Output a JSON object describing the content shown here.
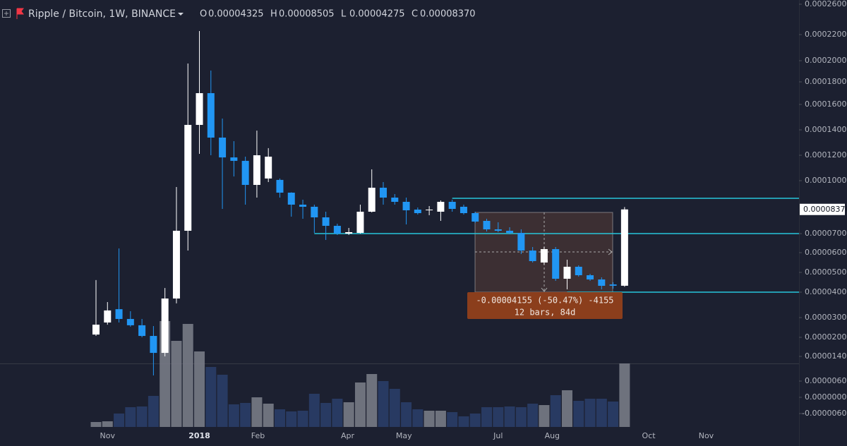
{
  "chart_data": {
    "type": "candlestick",
    "title": "Ripple / Bitcoin, 1W, BINANCE",
    "legend": [
      {
        "key": "O",
        "label": "0.00004325"
      },
      {
        "key": "H",
        "label": "0.00008505"
      },
      {
        "key": "L",
        "label": "0.00004275"
      },
      {
        "key": "C",
        "label": "0.00008370"
      }
    ],
    "categories": [
      null,
      null,
      null,
      null,
      null,
      null,
      null,
      null,
      null,
      null,
      null,
      null,
      null,
      null,
      null,
      null,
      null,
      null,
      null,
      null,
      null,
      null,
      null,
      null,
      null,
      null,
      null,
      null,
      null,
      null,
      null,
      null,
      null,
      null,
      null,
      null,
      null,
      null,
      null,
      null,
      null,
      null,
      null,
      null,
      null,
      null,
      null
    ],
    "open": [
      2.14e-05,
      2.75e-05,
      3.33e-05,
      2.93e-05,
      2.61e-05,
      2.07e-05,
      1.51e-05,
      3.75e-05,
      7.16e-05,
      0.0001439,
      0.00017,
      0.0001339,
      0.0001183,
      0.0001156,
      9.76e-05,
      0.0001017,
      0.0001006,
      9.32e-05,
      8.64e-05,
      8.52e-05,
      7.92e-05,
      7.44e-05,
      7e-05,
      7.04e-05,
      8.24e-05,
      9.6e-05,
      9.04e-05,
      8.8e-05,
      8.36e-05,
      8.32e-05,
      8.24e-05,
      8.8e-05,
      8.52e-05,
      8.16e-05,
      7.72e-05,
      7.24e-05,
      7.16e-05,
      7.04e-05,
      6.11e-05,
      5.5e-05,
      6.185e-05,
      4.679e-05,
      5.286e-05,
      4.857e-05,
      4.643e-05,
      4.39e-05,
      4.325e-05
    ],
    "high": [
      4.61e-05,
      3.61e-05,
      6.22e-05,
      3.25e-05,
      2.93e-05,
      2.57e-05,
      4.21e-05,
      9.64e-05,
      0.0001973,
      0.0002247,
      0.0001907,
      0.0001489,
      0.0001311,
      0.0001189,
      0.0001394,
      0.0001256,
      0.0001017,
      9.34e-05,
      8.92e-05,
      8.64e-05,
      8.24e-05,
      7.56e-05,
      7.32e-05,
      8.64e-05,
      0.0001089,
      9.92e-05,
      9.24e-05,
      9.04e-05,
      8.48e-05,
      8.56e-05,
      8.88e-05,
      8.92e-05,
      8.64e-05,
      8.24e-05,
      7.84e-05,
      7.64e-05,
      7.36e-05,
      7.24e-05,
      6.296e-05,
      6.296e-05,
      6.296e-05,
      5.643e-05,
      5.357e-05,
      4.929e-05,
      4.75e-05,
      4.5e-05,
      8.505e-05
    ],
    "low": [
      2.07e-05,
      2.64e-05,
      2.75e-05,
      2.54e-05,
      2e-05,
      8e-06,
      1.4e-05,
      3.56e-05,
      6.11e-05,
      0.0001211,
      0.00012,
      8.4e-05,
      0.0001033,
      8.64e-05,
      9.04e-05,
      9.92e-05,
      9.04e-05,
      7.96e-05,
      7.84e-05,
      7.04e-05,
      6.667e-05,
      6.926e-05,
      6.93e-05,
      7e-05,
      8.2e-05,
      8.64e-05,
      8.64e-05,
      7.52e-05,
      8.08e-05,
      8.04e-05,
      7.72e-05,
      8.24e-05,
      8.08e-05,
      7.6e-05,
      7.12e-05,
      7.08e-05,
      6.963e-05,
      5.929e-05,
      5.5e-05,
      5.393e-05,
      4.571e-05,
      4.143e-05,
      4.786e-05,
      4.571e-05,
      4.143e-05,
      4.18e-05,
      4.275e-05
    ],
    "close": [
      2.64e-05,
      3.28e-05,
      2.93e-05,
      2.61e-05,
      2.07e-05,
      1.51e-05,
      3.75e-05,
      7.16e-05,
      0.0001439,
      0.00017,
      0.0001339,
      0.0001183,
      0.0001156,
      9.76e-05,
      0.00012,
      0.0001189,
      9.32e-05,
      8.64e-05,
      8.52e-05,
      7.92e-05,
      7.44e-05,
      7e-05,
      7.08e-05,
      8.24e-05,
      9.6e-05,
      9.04e-05,
      8.8e-05,
      8.32e-05,
      8.16e-05,
      8.36e-05,
      8.8e-05,
      8.4e-05,
      8.16e-05,
      7.68e-05,
      7.24e-05,
      7.16e-05,
      7.04e-05,
      6.11e-05,
      5.571e-05,
      6.185e-05,
      4.679e-05,
      5.286e-05,
      4.857e-05,
      4.643e-05,
      4.321e-05,
      4.325e-05,
      8.37e-05
    ],
    "volume": [
      7,
      8,
      19,
      28,
      29,
      44,
      150,
      122,
      146,
      107,
      85,
      74,
      32,
      34,
      42,
      33,
      25,
      22,
      23,
      47,
      34,
      40,
      35,
      63,
      75,
      65,
      54,
      35,
      25,
      23,
      23,
      21,
      15,
      19,
      28,
      28,
      29,
      28,
      33,
      31,
      45,
      52,
      37,
      40,
      40,
      36,
      90
    ],
    "up_color": "#ffffff",
    "down_color": "#2196f3",
    "volume_up_color": "#787b86",
    "volume_down_color": "#2a3d68",
    "yticks": [
      {
        "value": 0.00026,
        "label": "0.00026000"
      },
      {
        "value": 0.00022,
        "label": "0.00022000"
      },
      {
        "value": 0.0002,
        "label": "0.00020000"
      },
      {
        "value": 0.00018,
        "label": "0.00018000"
      },
      {
        "value": 0.00016,
        "label": "0.00016000"
      },
      {
        "value": 0.00014,
        "label": "0.00014000"
      },
      {
        "value": 0.00012,
        "label": "0.00012000"
      },
      {
        "value": 0.0001,
        "label": "0.00010000"
      },
      {
        "value": 7e-05,
        "label": "0.00007000"
      },
      {
        "value": 6e-05,
        "label": "0.00006000"
      },
      {
        "value": 5e-05,
        "label": "0.00005000"
      },
      {
        "value": 4e-05,
        "label": "0.00004000"
      },
      {
        "value": 3e-05,
        "label": "0.00003000"
      },
      {
        "value": 2e-05,
        "label": "0.00002000"
      },
      {
        "value": 1.4e-05,
        "label": "0.00001400"
      }
    ],
    "volume_ticks": [
      {
        "value": 6e-06,
        "label": "0.00000600"
      },
      {
        "value": 0,
        "label": "0.00000000"
      },
      {
        "value": -6e-06,
        "label": "-0.00000600"
      }
    ],
    "xticks": [
      {
        "value": 1.0,
        "label": "Nov"
      },
      {
        "value": 9.0,
        "label": "2018"
      },
      {
        "value": 14.1,
        "label": "Feb"
      },
      {
        "value": 21.9,
        "label": "Apr"
      },
      {
        "value": 26.8,
        "label": "May"
      },
      {
        "value": 35.0,
        "label": "Jul"
      },
      {
        "value": 39.7,
        "label": "Aug"
      },
      {
        "value": 48.1,
        "label": "Oct"
      },
      {
        "value": 53.1,
        "label": "Nov"
      }
    ],
    "hlines": [
      9e-05,
      7e-05,
      4e-05
    ],
    "hline_color": "#26c6da",
    "measure": {
      "line1": "-0.00004155 (-50.47%) -4155",
      "line2": "12 bars, 84d"
    }
  }
}
